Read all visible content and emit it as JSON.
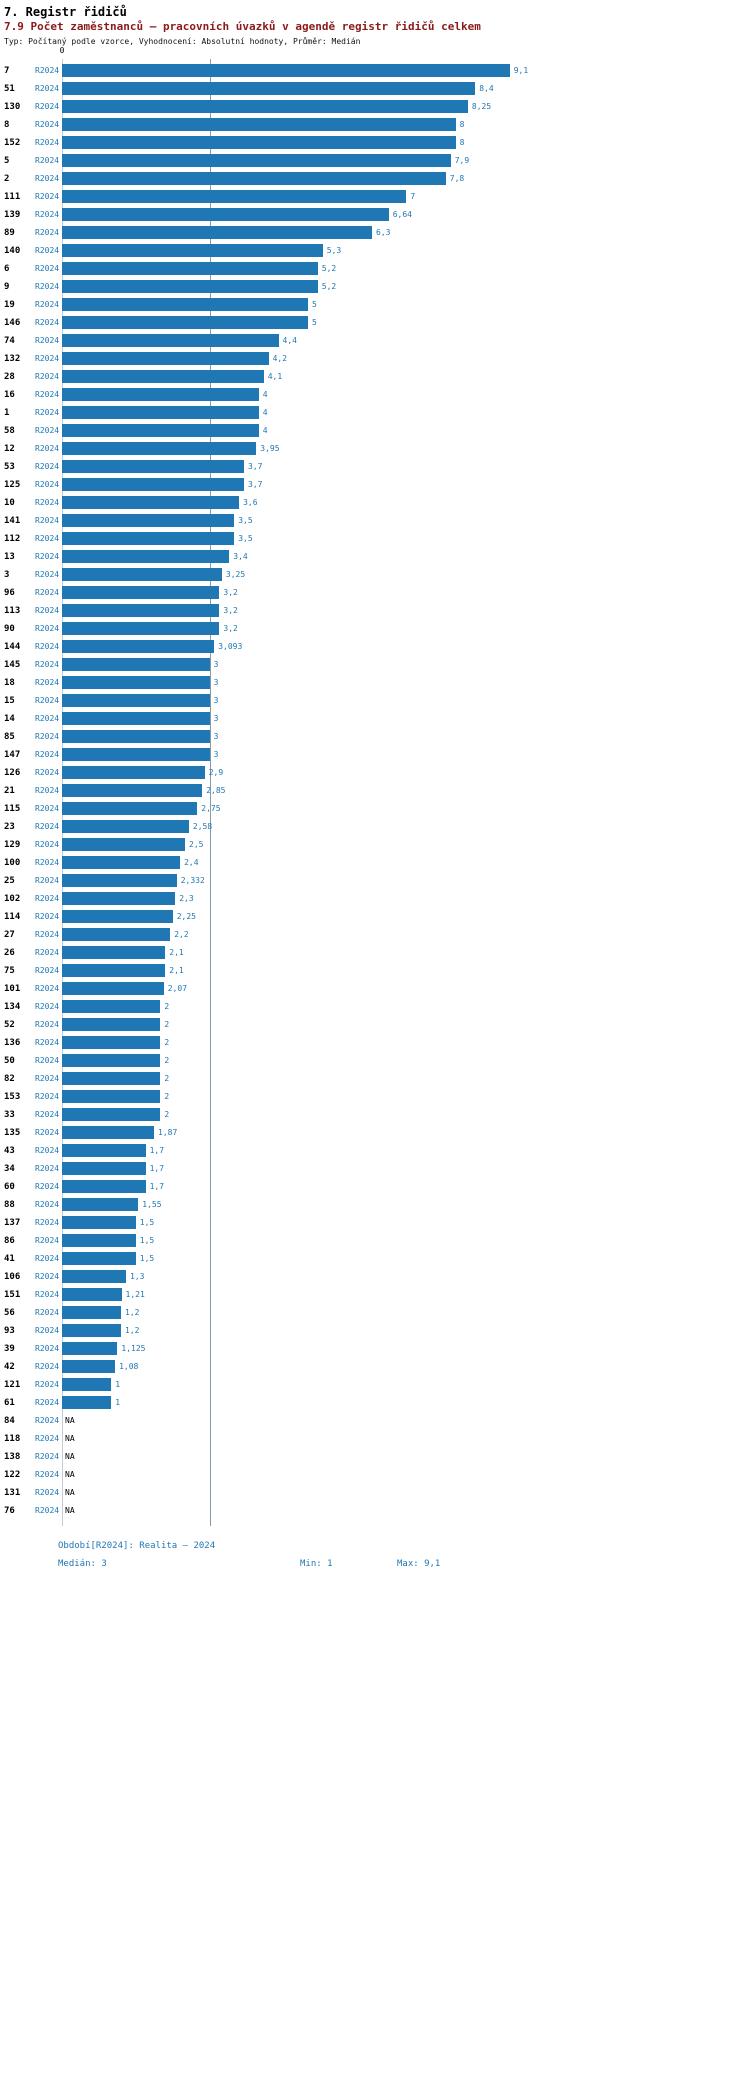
{
  "header": {
    "title": "7. Registr řidičů",
    "subtitle": "7.9 Počet zaměstnanců – pracovních úvazků v agendě registr řidičů celkem",
    "meta": "Typ: Počítaný podle vzorce, Vyhodnocení: Absolutní hodnoty, Průměr: Medián"
  },
  "chart_data": {
    "type": "bar",
    "orientation": "horizontal",
    "title": "7.9 Počet zaměstnanců – pracovních úvazků v agendě registr řidičů celkem",
    "series_label": "R2024",
    "axis": {
      "zero_label": "0"
    },
    "xlim": [
      0,
      9.5
    ],
    "median": 3,
    "min": 1,
    "max": 9.1,
    "rows": [
      {
        "id": "7",
        "label": "9,1",
        "value": 9.1
      },
      {
        "id": "51",
        "label": "8,4",
        "value": 8.4
      },
      {
        "id": "130",
        "label": "8,25",
        "value": 8.25
      },
      {
        "id": "8",
        "label": "8",
        "value": 8
      },
      {
        "id": "152",
        "label": "8",
        "value": 8
      },
      {
        "id": "5",
        "label": "7,9",
        "value": 7.9
      },
      {
        "id": "2",
        "label": "7,8",
        "value": 7.8
      },
      {
        "id": "111",
        "label": "7",
        "value": 7
      },
      {
        "id": "139",
        "label": "6,64",
        "value": 6.64
      },
      {
        "id": "89",
        "label": "6,3",
        "value": 6.3
      },
      {
        "id": "140",
        "label": "5,3",
        "value": 5.3
      },
      {
        "id": "6",
        "label": "5,2",
        "value": 5.2
      },
      {
        "id": "9",
        "label": "5,2",
        "value": 5.2
      },
      {
        "id": "19",
        "label": "5",
        "value": 5
      },
      {
        "id": "146",
        "label": "5",
        "value": 5
      },
      {
        "id": "74",
        "label": "4,4",
        "value": 4.4
      },
      {
        "id": "132",
        "label": "4,2",
        "value": 4.2
      },
      {
        "id": "28",
        "label": "4,1",
        "value": 4.1
      },
      {
        "id": "16",
        "label": "4",
        "value": 4
      },
      {
        "id": "1",
        "label": "4",
        "value": 4
      },
      {
        "id": "58",
        "label": "4",
        "value": 4
      },
      {
        "id": "12",
        "label": "3,95",
        "value": 3.95
      },
      {
        "id": "53",
        "label": "3,7",
        "value": 3.7
      },
      {
        "id": "125",
        "label": "3,7",
        "value": 3.7
      },
      {
        "id": "10",
        "label": "3,6",
        "value": 3.6
      },
      {
        "id": "141",
        "label": "3,5",
        "value": 3.5
      },
      {
        "id": "112",
        "label": "3,5",
        "value": 3.5
      },
      {
        "id": "13",
        "label": "3,4",
        "value": 3.4
      },
      {
        "id": "3",
        "label": "3,25",
        "value": 3.25
      },
      {
        "id": "96",
        "label": "3,2",
        "value": 3.2
      },
      {
        "id": "113",
        "label": "3,2",
        "value": 3.2
      },
      {
        "id": "90",
        "label": "3,2",
        "value": 3.2
      },
      {
        "id": "144",
        "label": "3,093",
        "value": 3.093
      },
      {
        "id": "145",
        "label": "3",
        "value": 3
      },
      {
        "id": "18",
        "label": "3",
        "value": 3
      },
      {
        "id": "15",
        "label": "3",
        "value": 3
      },
      {
        "id": "14",
        "label": "3",
        "value": 3
      },
      {
        "id": "85",
        "label": "3",
        "value": 3
      },
      {
        "id": "147",
        "label": "3",
        "value": 3
      },
      {
        "id": "126",
        "label": "2,9",
        "value": 2.9
      },
      {
        "id": "21",
        "label": "2,85",
        "value": 2.85
      },
      {
        "id": "115",
        "label": "2,75",
        "value": 2.75
      },
      {
        "id": "23",
        "label": "2,58",
        "value": 2.58
      },
      {
        "id": "129",
        "label": "2,5",
        "value": 2.5
      },
      {
        "id": "100",
        "label": "2,4",
        "value": 2.4
      },
      {
        "id": "25",
        "label": "2,332",
        "value": 2.332
      },
      {
        "id": "102",
        "label": "2,3",
        "value": 2.3
      },
      {
        "id": "114",
        "label": "2,25",
        "value": 2.25
      },
      {
        "id": "27",
        "label": "2,2",
        "value": 2.2
      },
      {
        "id": "26",
        "label": "2,1",
        "value": 2.1
      },
      {
        "id": "75",
        "label": "2,1",
        "value": 2.1
      },
      {
        "id": "101",
        "label": "2,07",
        "value": 2.07
      },
      {
        "id": "134",
        "label": "2",
        "value": 2
      },
      {
        "id": "52",
        "label": "2",
        "value": 2
      },
      {
        "id": "136",
        "label": "2",
        "value": 2
      },
      {
        "id": "50",
        "label": "2",
        "value": 2
      },
      {
        "id": "82",
        "label": "2",
        "value": 2
      },
      {
        "id": "153",
        "label": "2",
        "value": 2
      },
      {
        "id": "33",
        "label": "2",
        "value": 2
      },
      {
        "id": "135",
        "label": "1,87",
        "value": 1.87
      },
      {
        "id": "43",
        "label": "1,7",
        "value": 1.7
      },
      {
        "id": "34",
        "label": "1,7",
        "value": 1.7
      },
      {
        "id": "60",
        "label": "1,7",
        "value": 1.7
      },
      {
        "id": "88",
        "label": "1,55",
        "value": 1.55
      },
      {
        "id": "137",
        "label": "1,5",
        "value": 1.5
      },
      {
        "id": "86",
        "label": "1,5",
        "value": 1.5
      },
      {
        "id": "41",
        "label": "1,5",
        "value": 1.5
      },
      {
        "id": "106",
        "label": "1,3",
        "value": 1.3
      },
      {
        "id": "151",
        "label": "1,21",
        "value": 1.21
      },
      {
        "id": "56",
        "label": "1,2",
        "value": 1.2
      },
      {
        "id": "93",
        "label": "1,2",
        "value": 1.2
      },
      {
        "id": "39",
        "label": "1,125",
        "value": 1.125
      },
      {
        "id": "42",
        "label": "1,08",
        "value": 1.08
      },
      {
        "id": "121",
        "label": "1",
        "value": 1
      },
      {
        "id": "61",
        "label": "1",
        "value": 1
      },
      {
        "id": "84",
        "label": "NA",
        "value": null
      },
      {
        "id": "118",
        "label": "NA",
        "value": null
      },
      {
        "id": "138",
        "label": "NA",
        "value": null
      },
      {
        "id": "122",
        "label": "NA",
        "value": null
      },
      {
        "id": "131",
        "label": "NA",
        "value": null
      },
      {
        "id": "76",
        "label": "NA",
        "value": null
      }
    ]
  },
  "footer": {
    "period": "Období[R2024]: Realita – 2024",
    "median": "Medián: 3",
    "min": "Min: 1",
    "max": "Max: 9,1"
  },
  "colors": {
    "bar": "#1f77b4",
    "accent_text": "#1f77b4",
    "subtitle": "#8b1a1a",
    "median_line": "#8899aa"
  }
}
